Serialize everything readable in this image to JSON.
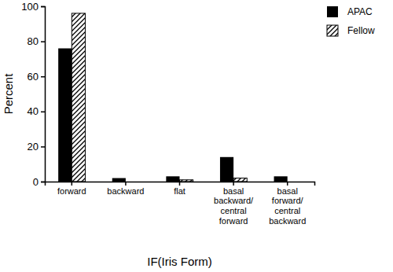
{
  "chart_data": {
    "type": "bar",
    "categories": [
      "forward",
      "backward",
      "flat",
      "basal backward/ central forward",
      "basal forward/ central backward"
    ],
    "series": [
      {
        "name": "APAC",
        "color": "#000000",
        "values": [
          76,
          2,
          3,
          14,
          3
        ]
      },
      {
        "name": "Fellow",
        "color": "#000000",
        "values": [
          96,
          0,
          1,
          2,
          0
        ]
      }
    ],
    "x_label": "IF(Iris Form)",
    "y_label": "Percent",
    "ylim": [
      0,
      100
    ],
    "yticks": [
      0,
      20,
      40,
      60,
      80,
      100
    ],
    "legend": "top-right",
    "grid": false
  }
}
